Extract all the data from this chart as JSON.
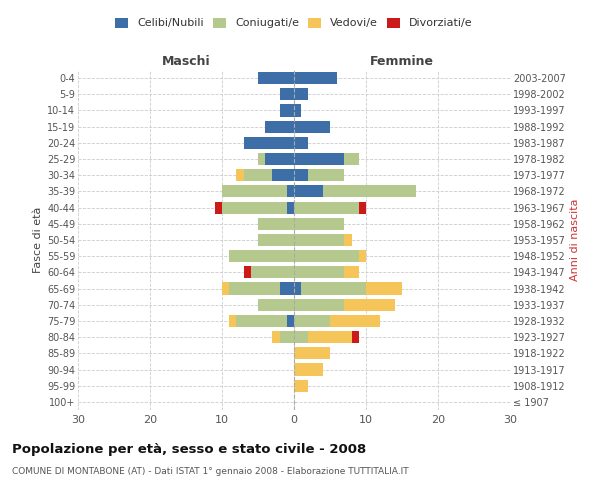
{
  "age_groups": [
    "100+",
    "95-99",
    "90-94",
    "85-89",
    "80-84",
    "75-79",
    "70-74",
    "65-69",
    "60-64",
    "55-59",
    "50-54",
    "45-49",
    "40-44",
    "35-39",
    "30-34",
    "25-29",
    "20-24",
    "15-19",
    "10-14",
    "5-9",
    "0-4"
  ],
  "birth_years": [
    "≤ 1907",
    "1908-1912",
    "1913-1917",
    "1918-1922",
    "1923-1927",
    "1928-1932",
    "1933-1937",
    "1938-1942",
    "1943-1947",
    "1948-1952",
    "1953-1957",
    "1958-1962",
    "1963-1967",
    "1968-1972",
    "1973-1977",
    "1978-1982",
    "1983-1987",
    "1988-1992",
    "1993-1997",
    "1998-2002",
    "2003-2007"
  ],
  "male": {
    "celibi": [
      0,
      0,
      0,
      0,
      0,
      1,
      0,
      2,
      0,
      0,
      0,
      0,
      1,
      1,
      3,
      4,
      7,
      4,
      2,
      2,
      5
    ],
    "coniugati": [
      0,
      0,
      0,
      0,
      2,
      7,
      5,
      7,
      6,
      9,
      5,
      5,
      9,
      9,
      4,
      1,
      0,
      0,
      0,
      0,
      0
    ],
    "vedovi": [
      0,
      0,
      0,
      0,
      1,
      1,
      0,
      1,
      0,
      0,
      0,
      0,
      0,
      0,
      1,
      0,
      0,
      0,
      0,
      0,
      0
    ],
    "divorziati": [
      0,
      0,
      0,
      0,
      0,
      0,
      0,
      0,
      1,
      0,
      0,
      0,
      1,
      0,
      0,
      0,
      0,
      0,
      0,
      0,
      0
    ]
  },
  "female": {
    "nubili": [
      0,
      0,
      0,
      0,
      0,
      0,
      0,
      1,
      0,
      0,
      0,
      0,
      0,
      4,
      2,
      7,
      2,
      5,
      1,
      2,
      6
    ],
    "coniugate": [
      0,
      0,
      0,
      0,
      2,
      5,
      7,
      9,
      7,
      9,
      7,
      7,
      9,
      13,
      5,
      2,
      0,
      0,
      0,
      0,
      0
    ],
    "vedove": [
      0,
      2,
      4,
      5,
      6,
      7,
      7,
      5,
      2,
      1,
      1,
      0,
      0,
      0,
      0,
      0,
      0,
      0,
      0,
      0,
      0
    ],
    "divorziate": [
      0,
      0,
      0,
      0,
      1,
      0,
      0,
      0,
      0,
      0,
      0,
      0,
      1,
      0,
      0,
      0,
      0,
      0,
      0,
      0,
      0
    ]
  },
  "colors": {
    "celibi_nubili": "#3d6ea8",
    "coniugati": "#b5c98e",
    "vedovi": "#f5c55a",
    "divorziati": "#cc1a1a"
  },
  "xlim": 30,
  "title": "Popolazione per età, sesso e stato civile - 2008",
  "subtitle": "COMUNE DI MONTABONE (AT) - Dati ISTAT 1° gennaio 2008 - Elaborazione TUTTITALIA.IT",
  "ylabel_left": "Fasce di età",
  "ylabel_right": "Anni di nascita",
  "xlabel_maschi": "Maschi",
  "xlabel_femmine": "Femmine",
  "legend_labels": [
    "Celibi/Nubili",
    "Coniugati/e",
    "Vedovi/e",
    "Divorziati/e"
  ],
  "bg_color": "#ffffff",
  "grid_color": "#cccccc"
}
